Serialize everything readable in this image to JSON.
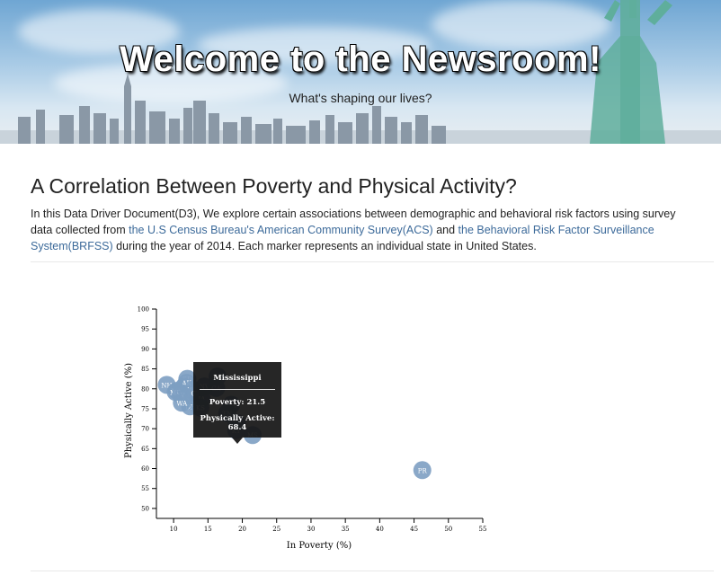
{
  "hero": {
    "title": "Welcome to the Newsroom!",
    "subtitle": "What's shaping our lives?"
  },
  "article": {
    "heading": "A Correlation Between Poverty and Physical Activity?",
    "intro_part1": "In this Data Driver Document(D3), We explore certain associations between demographic and behavioral risk factors using survey data collected from ",
    "link_acs": "the U.S Census Bureau's American Community Survey(ACS)",
    "intro_and": " and ",
    "link_brfss": "the Behavioral Risk Factor Surveillance System(BRFSS)",
    "intro_part2": " during the year of 2014. Each marker represents an individual state in United States."
  },
  "tooltip": {
    "state": "Mississippi",
    "poverty_text": "Poverty: 21.5",
    "active_text": "Physically Active: 68.4"
  },
  "colors": {
    "marker": "#7d9fc2",
    "accent": "#3c6a9a"
  },
  "chart_data": {
    "type": "scatter",
    "xlabel": "In Poverty (%)",
    "ylabel": "Physically Active (%)",
    "xlim": [
      7.5,
      55
    ],
    "ylim": [
      47.5,
      100
    ],
    "xticks": [
      10,
      15,
      20,
      25,
      30,
      35,
      40,
      45,
      50,
      55
    ],
    "yticks": [
      50,
      55,
      60,
      65,
      70,
      75,
      80,
      85,
      90,
      95,
      100
    ],
    "points": [
      {
        "abbr": "NH",
        "x": 9.0,
        "y": 81.0
      },
      {
        "abbr": "SD",
        "x": 12.0,
        "y": 82.5
      },
      {
        "abbr": "ND",
        "x": 11.5,
        "y": 80.5
      },
      {
        "abbr": "AK",
        "x": 11.9,
        "y": 81.5
      },
      {
        "abbr": "MN",
        "x": 10.5,
        "y": 79.5
      },
      {
        "abbr": "WY",
        "x": 12.8,
        "y": 79.8
      },
      {
        "abbr": "NV",
        "x": 14.5,
        "y": 80.6
      },
      {
        "abbr": "MD",
        "x": 10.3,
        "y": 79.2
      },
      {
        "abbr": "NJ",
        "x": 11.1,
        "y": 78.4
      },
      {
        "abbr": "VA",
        "x": 11.8,
        "y": 77.9
      },
      {
        "abbr": "NA",
        "x": 12.6,
        "y": 77.1
      },
      {
        "abbr": "CT",
        "x": 13.2,
        "y": 78.9
      },
      {
        "abbr": "DE",
        "x": 12.4,
        "y": 75.6
      },
      {
        "abbr": "WA",
        "x": 11.2,
        "y": 76.5
      },
      {
        "abbr": "IA",
        "x": 14.1,
        "y": 77.6
      },
      {
        "abbr": "KS",
        "x": 13.9,
        "y": 75.3
      },
      {
        "abbr": "OR",
        "x": 16.4,
        "y": 83.1
      },
      {
        "abbr": "CA",
        "x": 16.2,
        "y": 80.2
      },
      {
        "abbr": "GA",
        "x": 18.4,
        "y": 76.0
      },
      {
        "abbr": "TN",
        "x": 17.8,
        "y": 73.9
      },
      {
        "abbr": "AL",
        "x": 19.2,
        "y": 71.5
      },
      {
        "abbr": "KY",
        "x": 19.1,
        "y": 69.6
      },
      {
        "abbr": "MS",
        "x": 21.5,
        "y": 68.4
      },
      {
        "abbr": "PR",
        "x": 46.2,
        "y": 59.6
      }
    ]
  }
}
